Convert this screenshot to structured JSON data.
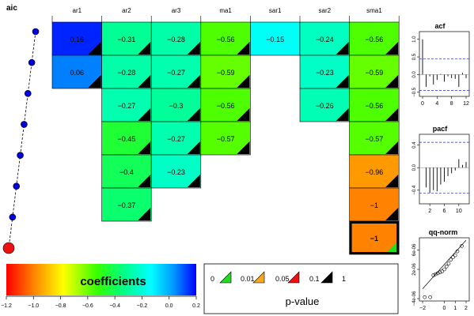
{
  "chart_data": {
    "type": "heatmap",
    "title": "",
    "aic_panel": {
      "title": "aic",
      "points": 8,
      "selected_index": 7
    },
    "columns": [
      "ar1",
      "ar2",
      "ar3",
      "ma1",
      "sar1",
      "sar2",
      "sma1"
    ],
    "rows": [
      [
        "0.16",
        "-0.31",
        "-0.28",
        "-0.56",
        "-0.15",
        "-0.24",
        "-0.56"
      ],
      [
        "0.06",
        "-0.28",
        "-0.27",
        "-0.59",
        null,
        "-0.23",
        "-0.59"
      ],
      [
        null,
        "-0.27",
        "-0.3",
        "-0.56",
        null,
        "-0.26",
        "-0.56"
      ],
      [
        null,
        "-0.45",
        "-0.27",
        "-0.57",
        null,
        null,
        "-0.57"
      ],
      [
        null,
        "-0.4",
        "-0.23",
        null,
        null,
        null,
        "-0.96"
      ],
      [
        null,
        "-0.37",
        null,
        null,
        null,
        null,
        "-1"
      ],
      [
        null,
        null,
        null,
        null,
        null,
        null,
        "-1"
      ]
    ],
    "pvalue_class": [
      [
        "0.1",
        "0.1",
        "0.1",
        "0.1",
        "none",
        "0.1",
        "0.1"
      ],
      [
        "0.1",
        "0.1",
        "0.1",
        "0.1",
        null,
        "0.1",
        "0.1"
      ],
      [
        null,
        "0.1",
        "0.1",
        "0.1",
        null,
        "0.1",
        "0.1"
      ],
      [
        null,
        "0.1",
        "0.1",
        "0.1",
        null,
        null,
        "0.1"
      ],
      [
        null,
        "0.1",
        "0.1",
        null,
        null,
        null,
        "0.1"
      ],
      [
        null,
        "0.1",
        null,
        null,
        null,
        null,
        "0.1"
      ],
      [
        null,
        null,
        null,
        null,
        null,
        null,
        "0"
      ]
    ],
    "selected_row": 6,
    "colorbar": {
      "label": "coefficients",
      "range": [
        -1.2,
        0.2
      ],
      "ticks": [
        "-1.2",
        "-1.0",
        "-0.8",
        "-0.6",
        "-0.4",
        "-0.2",
        "0.0",
        "0.2"
      ]
    },
    "pvalue_legend": {
      "title": "p-value",
      "labels": [
        "0",
        "0.01",
        "0.05",
        "0.1",
        "1"
      ],
      "colors": [
        "#22dd22",
        "#f5a623",
        "#ee1111",
        "#000000"
      ]
    },
    "acf": {
      "title": "acf",
      "ylim": [
        -0.55,
        1.15
      ],
      "yticks": [
        "-0.5",
        "0.0",
        "0.5",
        "1.0"
      ],
      "xticks": [
        "0",
        "4",
        "8",
        "12"
      ],
      "xlim": [
        0,
        12
      ],
      "conf": 0.45,
      "lags": [
        0,
        1,
        2,
        3,
        4,
        5,
        6,
        7,
        8,
        9,
        10,
        11,
        12
      ],
      "values": [
        1.0,
        -0.35,
        -0.05,
        -0.28,
        -0.15,
        0.02,
        -0.2,
        -0.05,
        -0.1,
        -0.12,
        -0.35,
        0.05,
        -0.1
      ]
    },
    "pacf": {
      "title": "pacf",
      "ylim": [
        -0.6,
        0.55
      ],
      "yticks": [
        "-0.4",
        "0.0",
        "0.4"
      ],
      "xticks": [
        "2",
        "6",
        "10"
      ],
      "xlim": [
        0,
        12
      ],
      "conf": 0.45,
      "lags": [
        1,
        2,
        3,
        4,
        5,
        6,
        7,
        8,
        9,
        10,
        11,
        12
      ],
      "values": [
        -0.35,
        -0.45,
        -0.4,
        -0.42,
        -0.3,
        -0.25,
        -0.15,
        -0.1,
        -0.05,
        0.15,
        0.05,
        0.1
      ]
    },
    "qqnorm": {
      "title": "qq-norm",
      "xlim": [
        -2,
        2
      ],
      "ylim": [
        -4e-06,
        8e-06
      ],
      "xticks": [
        "-2",
        "0",
        "1",
        "2"
      ],
      "yticks": [
        "-4e-06",
        "2e-06",
        "6e-06"
      ],
      "points": [
        [
          -1.8,
          -3.7e-06
        ],
        [
          -1.3,
          -3.7e-06
        ],
        [
          -1.0,
          8e-07
        ],
        [
          -0.8,
          1e-06
        ],
        [
          -0.6,
          1.2e-06
        ],
        [
          -0.4,
          1.4e-06
        ],
        [
          -0.2,
          1.6e-06
        ],
        [
          0.0,
          2e-06
        ],
        [
          0.2,
          2.6e-06
        ],
        [
          0.4,
          3.2e-06
        ],
        [
          0.6,
          4e-06
        ],
        [
          0.8,
          4.5e-06
        ],
        [
          1.0,
          4.9e-06
        ],
        [
          1.2,
          5.7e-06
        ],
        [
          1.6,
          6.8e-06
        ]
      ],
      "line": [
        [
          -2,
          -2e-06
        ],
        [
          2,
          8e-06
        ]
      ]
    }
  }
}
